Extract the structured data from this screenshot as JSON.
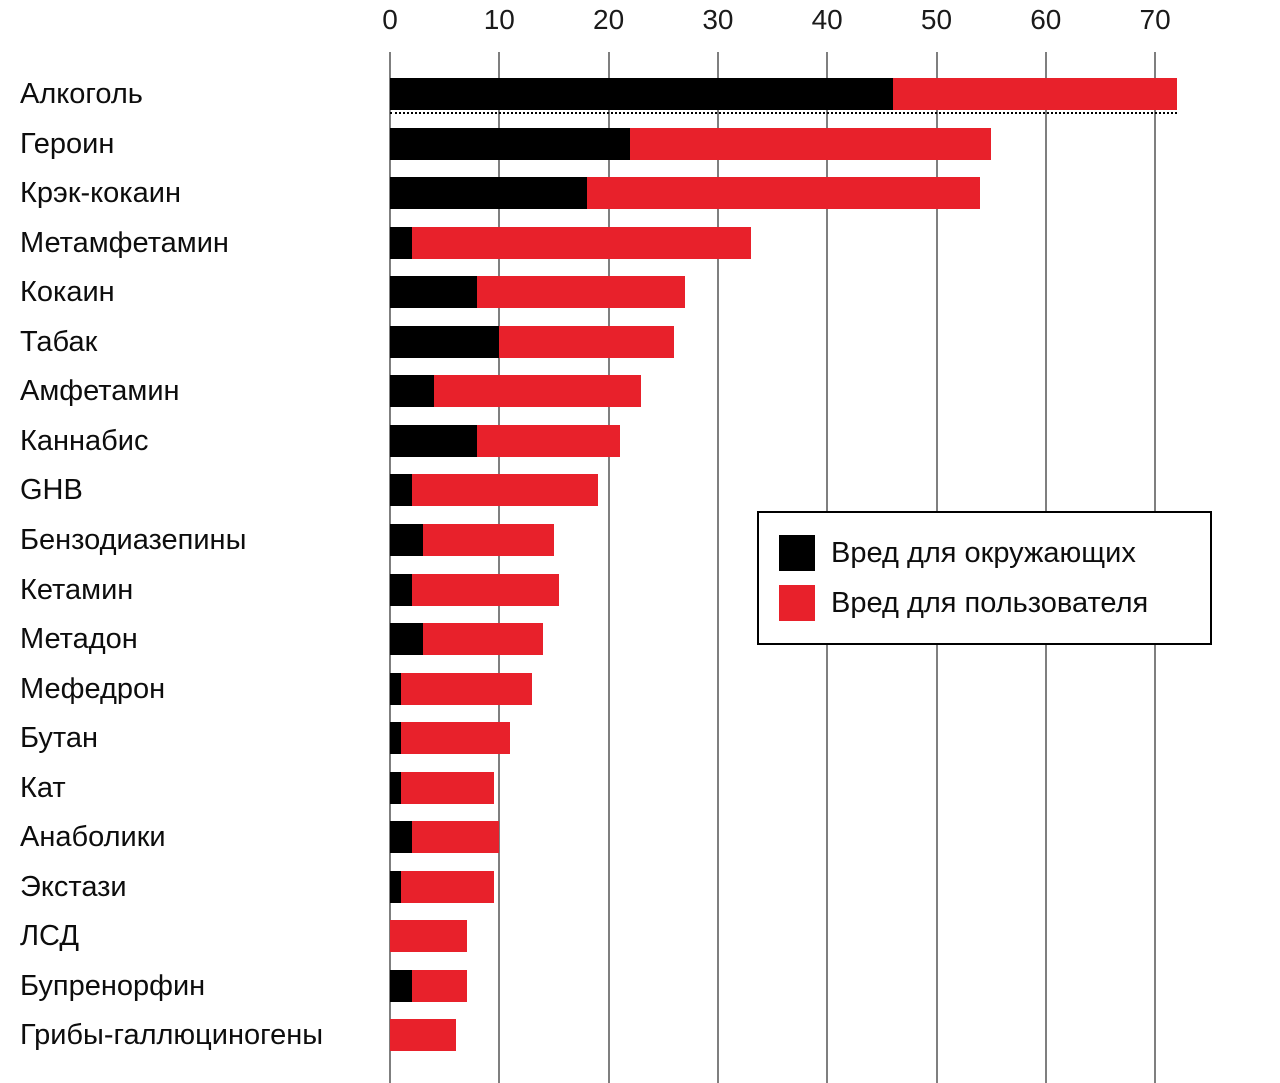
{
  "chart_data": {
    "type": "bar",
    "orientation": "horizontal",
    "stacked": true,
    "title": "",
    "xlabel": "",
    "ylabel": "",
    "grid": true,
    "legend_position": "center-right",
    "xlim": [
      0,
      73
    ],
    "xticks": [
      0,
      10,
      20,
      30,
      40,
      50,
      60,
      70
    ],
    "categories": [
      "Алкоголь",
      "Героин",
      "Крэк-кокаин",
      "Метамфетамин",
      "Кокаин",
      "Табак",
      "Амфетамин",
      "Каннабис",
      "GHB",
      "Бензодиазепины",
      "Кетамин",
      "Метадон",
      "Мефедрон",
      "Бутан",
      "Кат",
      "Анаболики",
      "Экстази",
      "ЛСД",
      "Бупренорфин",
      "Грибы-галлюциногены"
    ],
    "series": [
      {
        "name": "Вред для окружающих",
        "color": "#000000",
        "values": [
          46,
          22,
          18,
          2,
          8,
          10,
          4,
          8,
          2,
          3,
          2,
          3,
          1,
          1,
          1,
          2,
          1,
          0,
          2,
          0
        ]
      },
      {
        "name": "Вред для пользователя",
        "color": "#e8212b",
        "values": [
          26,
          33,
          36,
          31,
          19,
          16,
          19,
          13,
          17,
          12,
          13.5,
          11,
          12,
          10,
          8.5,
          8,
          8.5,
          7,
          5,
          6
        ]
      }
    ]
  }
}
